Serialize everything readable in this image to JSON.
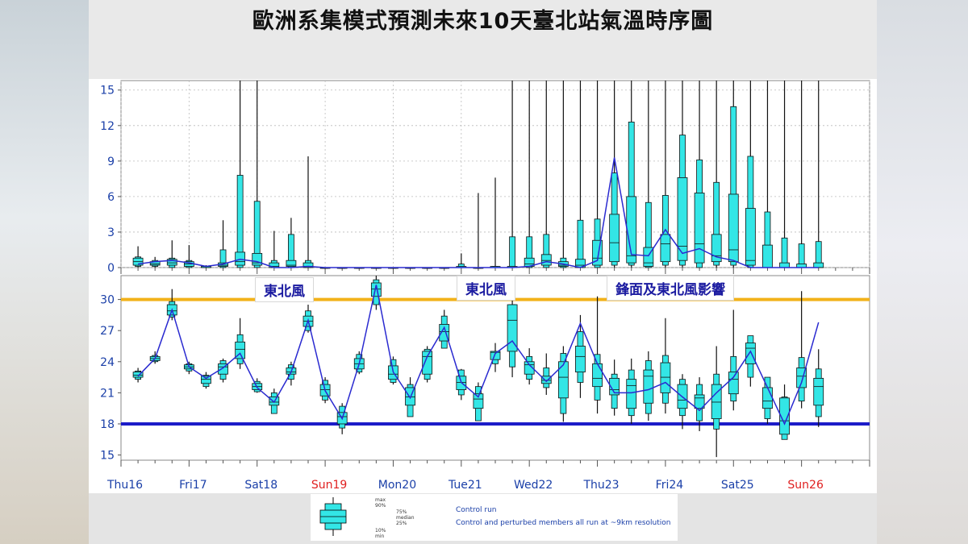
{
  "title": "歐洲系集模式預測未來10天臺北站氣溫時序圖",
  "annotations": [
    "東北風",
    "東北風",
    "鋒面及東北風影響"
  ],
  "legend": {
    "max": "max",
    "p90": "90%",
    "p75": "75%",
    "median": "median",
    "p25": "25%",
    "p10": "10%",
    "min": "min",
    "control": "Control run",
    "members": "Control and perturbed members all run at ~9km resolution"
  },
  "colors": {
    "box_fill": "#33e6e6",
    "control_line": "#2a2ad0",
    "ref_high_line": "#f2b21a",
    "ref_low_line": "#1c1cc8",
    "weekend_label": "#e02020"
  },
  "chart_data": [
    {
      "type": "box",
      "title": "",
      "xlabel": "",
      "ylabel": "",
      "ylim": [
        0,
        15.8
      ],
      "yticks": [
        0,
        3,
        6,
        9,
        12,
        15
      ],
      "grid": true,
      "x_ticks": [
        "Thu16",
        "Fri17",
        "Sat18",
        "Sun19",
        "Mon20",
        "Tue21",
        "Wed22",
        "Thu23",
        "Fri24",
        "Sat25",
        "Sun26"
      ],
      "x_tick_colors": [
        "#1a3fa8",
        "#1a3fa8",
        "#1a3fa8",
        "#e02020",
        "#1a3fa8",
        "#1a3fa8",
        "#1a3fa8",
        "#1a3fa8",
        "#1a3fa8",
        "#1a3fa8",
        "#e02020"
      ],
      "t": [
        0.25,
        0.5,
        0.75,
        1.0,
        1.25,
        1.5,
        1.75,
        2.0,
        2.25,
        2.5,
        2.75,
        3.0,
        3.25,
        3.5,
        3.75,
        4.0,
        4.25,
        4.5,
        4.75,
        5.0,
        5.25,
        5.5,
        5.75,
        6.0,
        6.25,
        6.5,
        6.75,
        7.0,
        7.25,
        7.5,
        7.75,
        8.0,
        8.25,
        8.5,
        8.75,
        9.0,
        9.25,
        9.5,
        9.75,
        10.0,
        10.25
      ],
      "min": [
        0,
        0,
        0,
        0,
        0,
        0,
        0,
        0,
        0,
        0,
        0,
        0,
        0,
        0,
        0,
        0,
        0,
        0,
        0,
        0,
        0,
        0,
        0,
        0,
        0,
        0,
        0,
        0,
        0,
        0,
        0,
        0,
        0,
        0,
        0,
        0,
        0,
        0,
        0,
        0,
        0
      ],
      "p10": [
        0.1,
        0.1,
        0,
        0,
        0,
        0,
        0,
        0,
        0,
        0,
        0,
        0,
        0,
        0,
        0,
        0,
        0,
        0,
        0,
        0,
        0,
        0,
        0,
        0,
        0,
        0,
        0,
        0,
        0.2,
        0.2,
        0,
        0.2,
        0.2,
        0,
        0.2,
        0.2,
        0,
        0,
        0,
        0,
        0
      ],
      "p25": [
        0.2,
        0.2,
        0.2,
        0.1,
        0,
        0.1,
        0.2,
        0.2,
        0,
        0.1,
        0,
        0,
        0,
        0,
        0,
        0,
        0,
        0,
        0,
        0,
        0,
        0,
        0,
        0.1,
        0.2,
        0.1,
        0,
        0.2,
        0.5,
        0.4,
        0.1,
        0.5,
        0.6,
        0.4,
        0.5,
        0.5,
        0.2,
        0,
        0,
        0,
        0
      ],
      "median": [
        0.5,
        0.3,
        0.4,
        0.3,
        0,
        0.2,
        0.5,
        0.4,
        0.1,
        0.2,
        0.1,
        0,
        0,
        0,
        0,
        0,
        0,
        0,
        0,
        0,
        0,
        0,
        0,
        0.3,
        0.6,
        0.2,
        0.2,
        0.8,
        2.1,
        1.0,
        0.4,
        2.0,
        1.8,
        2.0,
        1.0,
        1.5,
        0.6,
        0,
        0,
        0,
        0
      ],
      "p75": [
        0.8,
        0.5,
        0.7,
        0.5,
        0.1,
        0.4,
        1.3,
        1.2,
        0.4,
        0.6,
        0.4,
        0,
        0,
        0,
        0,
        0,
        0,
        0,
        0,
        0.1,
        0,
        0.1,
        0.1,
        0.8,
        1.1,
        0.5,
        0.7,
        2.3,
        4.5,
        6.0,
        1.7,
        2.8,
        7.6,
        6.3,
        2.8,
        6.2,
        5.0,
        1.9,
        0.4,
        0.3,
        0.4
      ],
      "p90": [
        0.9,
        0.6,
        0.8,
        0.6,
        0.1,
        1.5,
        7.8,
        5.6,
        0.6,
        2.8,
        0.6,
        0,
        0,
        0,
        0,
        0,
        0,
        0,
        0,
        0.3,
        0,
        0.1,
        2.6,
        2.6,
        2.8,
        0.8,
        4.0,
        4.1,
        8.0,
        12.3,
        5.5,
        6.1,
        11.2,
        9.1,
        7.2,
        13.6,
        9.4,
        4.7,
        2.5,
        2.0,
        2.2
      ],
      "max": [
        1.8,
        0.9,
        2.3,
        1.9,
        0.2,
        4.0,
        16,
        16,
        3.1,
        4.2,
        9.4,
        0,
        0,
        0,
        0,
        0,
        0,
        0,
        0,
        1.2,
        6.3,
        7.6,
        16,
        16,
        16,
        16,
        16,
        16,
        16,
        16,
        16,
        16,
        16,
        16,
        16,
        16,
        16,
        16,
        16,
        16,
        16
      ],
      "control": [
        0.3,
        0.5,
        0.6,
        0.4,
        0.1,
        0.3,
        0.7,
        0.5,
        0,
        0,
        0.1,
        0,
        0,
        0,
        0,
        0,
        0,
        0,
        0,
        0,
        0,
        0,
        0,
        0.1,
        0.5,
        0.3,
        0,
        0.6,
        9.3,
        1.1,
        1.0,
        3.2,
        1.2,
        1.6,
        0.9,
        0.6,
        0,
        0,
        0,
        0,
        0
      ]
    },
    {
      "type": "box",
      "title": "",
      "xlabel": "",
      "ylabel": "",
      "ylim": [
        14.5,
        32.3
      ],
      "yticks": [
        15,
        18,
        21,
        24,
        27,
        30
      ],
      "grid": false,
      "reference_lines": [
        30,
        18
      ],
      "x_ticks": [
        "Thu16",
        "Fri17",
        "Sat18",
        "Sun19",
        "Mon20",
        "Tue21",
        "Wed22",
        "Thu23",
        "Fri24",
        "Sat25",
        "Sun26"
      ],
      "t": [
        0.25,
        0.5,
        0.75,
        1.0,
        1.25,
        1.5,
        1.75,
        2.0,
        2.25,
        2.5,
        2.75,
        3.0,
        3.25,
        3.5,
        3.75,
        4.0,
        4.25,
        4.5,
        4.75,
        5.0,
        5.25,
        5.5,
        5.75,
        6.0,
        6.25,
        6.5,
        6.75,
        7.0,
        7.25,
        7.5,
        7.75,
        8.0,
        8.25,
        8.5,
        8.75,
        9.0,
        9.25,
        9.5,
        9.75,
        10.0,
        10.25
      ],
      "min": [
        22.0,
        23.8,
        28.0,
        22.8,
        21.4,
        22.0,
        23.3,
        21.0,
        19.7,
        21.7,
        26.8,
        20.0,
        17.0,
        22.8,
        29.0,
        21.8,
        20.0,
        22.0,
        25.8,
        20.3,
        18.8,
        23.0,
        22.5,
        21.8,
        20.8,
        18.2,
        20.5,
        19.0,
        18.8,
        18.0,
        18.3,
        19.0,
        17.5,
        17.3,
        14.8,
        19.3,
        21.6,
        18.0,
        16.5,
        19.5,
        17.7
      ],
      "p10": [
        22.3,
        24.0,
        28.3,
        23.1,
        21.6,
        22.3,
        23.8,
        21.1,
        19.0,
        22.3,
        27.0,
        20.3,
        17.6,
        23.0,
        29.5,
        22.0,
        18.7,
        22.3,
        25.3,
        20.8,
        18.3,
        23.8,
        23.5,
        22.3,
        21.5,
        19.0,
        22.0,
        20.3,
        19.5,
        18.8,
        19.0,
        20.0,
        18.8,
        18.3,
        17.5,
        20.2,
        22.5,
        18.5,
        16.5,
        20.2,
        18.7
      ],
      "p25": [
        22.5,
        24.1,
        28.5,
        23.3,
        21.9,
        22.8,
        24.3,
        21.3,
        19.8,
        22.8,
        27.4,
        20.7,
        18.0,
        23.3,
        30.3,
        22.3,
        19.8,
        22.8,
        26.0,
        21.3,
        19.5,
        24.2,
        25.0,
        22.8,
        21.9,
        20.5,
        23.0,
        21.6,
        20.8,
        19.5,
        20.0,
        21.0,
        19.5,
        19.5,
        18.5,
        20.9,
        23.8,
        19.5,
        17.0,
        21.5,
        19.8
      ],
      "median": [
        22.7,
        24.3,
        28.9,
        23.5,
        22.3,
        23.5,
        25.2,
        21.6,
        20.1,
        23.0,
        27.9,
        21.3,
        18.7,
        23.8,
        31.0,
        22.8,
        20.6,
        24.5,
        26.9,
        22.0,
        20.4,
        24.9,
        28.0,
        23.7,
        22.2,
        22.5,
        24.5,
        22.4,
        21.3,
        21.7,
        22.6,
        22.5,
        20.3,
        20.5,
        20.1,
        22.3,
        25.3,
        20.2,
        18.3,
        22.6,
        21.6
      ],
      "p75": [
        23.0,
        24.5,
        29.5,
        23.7,
        22.6,
        23.8,
        25.9,
        21.9,
        20.6,
        23.4,
        28.4,
        21.8,
        19.1,
        24.3,
        31.6,
        23.6,
        21.5,
        25.0,
        27.6,
        22.6,
        20.9,
        25.0,
        29.5,
        24.0,
        22.6,
        24.0,
        25.5,
        23.8,
        22.4,
        22.3,
        23.2,
        23.9,
        21.8,
        20.8,
        21.8,
        23.0,
        25.8,
        21.5,
        20.5,
        23.4,
        22.4
      ],
      "p90": [
        23.1,
        24.6,
        29.8,
        23.8,
        22.7,
        24.1,
        26.6,
        22.1,
        21.0,
        23.7,
        28.9,
        22.2,
        19.7,
        24.7,
        31.9,
        24.2,
        21.8,
        25.2,
        28.4,
        23.2,
        21.6,
        25.0,
        29.5,
        24.5,
        23.4,
        24.8,
        26.9,
        24.7,
        22.8,
        23.2,
        24.1,
        24.6,
        22.3,
        21.8,
        22.8,
        24.5,
        26.5,
        22.5,
        20.6,
        24.4,
        23.3
      ],
      "max": [
        23.4,
        25.0,
        31.0,
        24.0,
        23.0,
        24.3,
        28.2,
        22.4,
        21.4,
        24.0,
        29.5,
        22.5,
        20.0,
        25.0,
        32.3,
        24.5,
        22.5,
        25.5,
        29.0,
        23.3,
        22.0,
        25.8,
        30.5,
        25.3,
        24.8,
        25.5,
        28.5,
        30.3,
        24.2,
        24.3,
        25.0,
        28.2,
        22.8,
        22.5,
        25.5,
        29.0,
        24.6,
        22.5,
        21.8,
        30.8,
        25.2
      ],
      "control": [
        22.6,
        24.3,
        29.0,
        23.5,
        22.4,
        23.4,
        24.8,
        21.5,
        20.1,
        23.0,
        28.0,
        21.2,
        18.5,
        23.8,
        31.4,
        23.0,
        20.5,
        24.5,
        27.3,
        22.0,
        20.6,
        24.8,
        26.0,
        23.7,
        22.1,
        23.7,
        27.7,
        23.8,
        21.0,
        21.0,
        21.3,
        22.0,
        20.6,
        19.3,
        21.0,
        22.5,
        25.0,
        21.5,
        18.0,
        22.0,
        27.8
      ]
    }
  ]
}
